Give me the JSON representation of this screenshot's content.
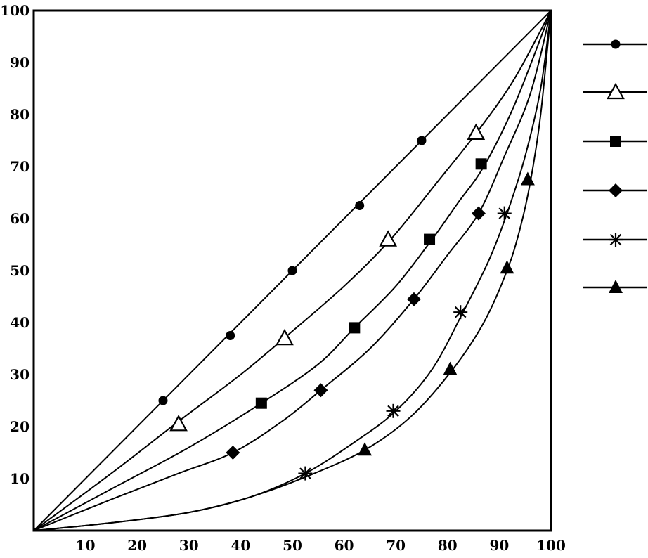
{
  "chart_data": {
    "type": "line",
    "title": "",
    "xlabel": "",
    "ylabel": "",
    "xlim": [
      0,
      100
    ],
    "ylim": [
      0,
      100
    ],
    "x_ticks": [
      10,
      20,
      30,
      40,
      50,
      60,
      70,
      80,
      90,
      100
    ],
    "x_tick_labels": [
      "10",
      "20",
      "30",
      "40",
      "50",
      "60",
      "70",
      "80",
      "90",
      "100"
    ],
    "y_ticks": [
      10,
      20,
      30,
      40,
      50,
      60,
      70,
      80,
      90,
      100
    ],
    "y_tick_labels": [
      "10",
      "20",
      "30",
      "40",
      "50",
      "60",
      "70",
      "80",
      "90",
      "100"
    ],
    "grid": false,
    "legend": "right, outside plot, markers only",
    "series": [
      {
        "marker": "filled-circle",
        "curve": [
          [
            0,
            0
          ],
          [
            100,
            100
          ]
        ],
        "points": [
          [
            25,
            25
          ],
          [
            38,
            37.5
          ],
          [
            50,
            50
          ],
          [
            63,
            62.5
          ],
          [
            75,
            75
          ]
        ]
      },
      {
        "marker": "open-triangle",
        "curve": [
          [
            0,
            0
          ],
          [
            15,
            11
          ],
          [
            28,
            21
          ],
          [
            40,
            30
          ],
          [
            49,
            37.5
          ],
          [
            60,
            47
          ],
          [
            69,
            56
          ],
          [
            78,
            67
          ],
          [
            86,
            77
          ],
          [
            93,
            87
          ],
          [
            100,
            100
          ]
        ],
        "points": [
          [
            28,
            20.5
          ],
          [
            48.5,
            37
          ],
          [
            68.5,
            56
          ],
          [
            85.5,
            76.5
          ]
        ]
      },
      {
        "marker": "filled-square",
        "curve": [
          [
            0,
            0
          ],
          [
            15,
            8
          ],
          [
            30,
            16
          ],
          [
            44,
            24.5
          ],
          [
            55,
            32
          ],
          [
            62,
            39
          ],
          [
            70,
            47
          ],
          [
            77,
            56
          ],
          [
            82,
            63
          ],
          [
            87,
            70
          ],
          [
            93,
            82
          ],
          [
            100,
            100
          ]
        ],
        "points": [
          [
            44,
            24.5
          ],
          [
            62,
            39
          ],
          [
            76.5,
            56
          ],
          [
            86.5,
            70.5
          ]
        ]
      },
      {
        "marker": "filled-diamond",
        "curve": [
          [
            0,
            0
          ],
          [
            15,
            6
          ],
          [
            28,
            11
          ],
          [
            38.5,
            15
          ],
          [
            48,
            21
          ],
          [
            55.5,
            27
          ],
          [
            65,
            35
          ],
          [
            73.5,
            44.5
          ],
          [
            80,
            53
          ],
          [
            86,
            61
          ],
          [
            91,
            72
          ],
          [
            96,
            84
          ],
          [
            100,
            100
          ]
        ],
        "points": [
          [
            38.5,
            15
          ],
          [
            55.5,
            27
          ],
          [
            73.5,
            44.5
          ],
          [
            86,
            61
          ]
        ]
      },
      {
        "marker": "asterisk",
        "curve": [
          [
            0,
            0
          ],
          [
            15,
            1.5
          ],
          [
            30,
            3.5
          ],
          [
            42,
            6.5
          ],
          [
            52.5,
            11
          ],
          [
            62,
            17
          ],
          [
            70,
            23
          ],
          [
            77,
            31
          ],
          [
            83,
            42
          ],
          [
            88,
            52
          ],
          [
            91.5,
            61
          ],
          [
            95,
            72
          ],
          [
            98,
            85
          ],
          [
            100,
            100
          ]
        ],
        "points": [
          [
            52.5,
            11
          ],
          [
            69.5,
            23
          ],
          [
            82.5,
            42
          ],
          [
            91,
            61
          ]
        ]
      },
      {
        "marker": "filled-triangle",
        "curve": [
          [
            0,
            0
          ],
          [
            15,
            1.5
          ],
          [
            30,
            3.5
          ],
          [
            42,
            6.5
          ],
          [
            53,
            10.5
          ],
          [
            64,
            15.5
          ],
          [
            73,
            22
          ],
          [
            81,
            31
          ],
          [
            87,
            40
          ],
          [
            91.5,
            50
          ],
          [
            94,
            58
          ],
          [
            96,
            67
          ],
          [
            98,
            80
          ],
          [
            100,
            100
          ]
        ],
        "points": [
          [
            64,
            15.5
          ],
          [
            80.5,
            31
          ],
          [
            91.5,
            50.5
          ],
          [
            95.5,
            67.5
          ]
        ]
      }
    ]
  }
}
